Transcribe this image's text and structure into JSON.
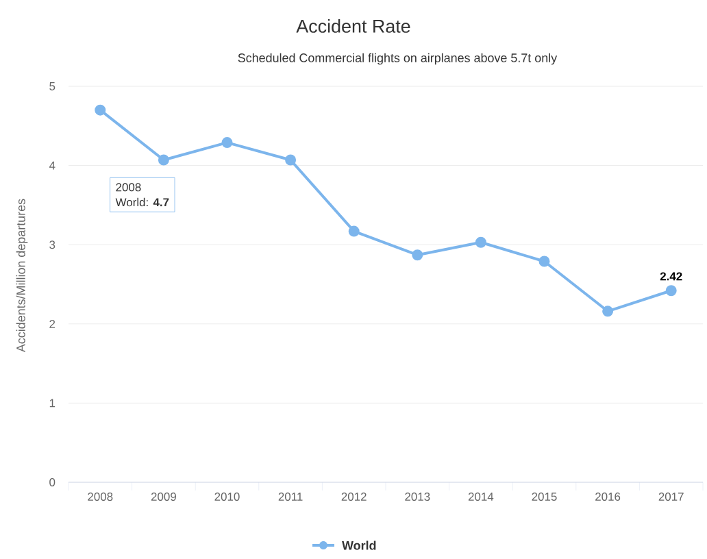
{
  "chart_data": {
    "type": "line",
    "title": "Accident Rate",
    "subtitle": "Scheduled Commercial flights on airplanes above 5.7t only",
    "ylabel": "Accidents/Million departures",
    "categories": [
      "2008",
      "2009",
      "2010",
      "2011",
      "2012",
      "2013",
      "2014",
      "2015",
      "2016",
      "2017"
    ],
    "series": [
      {
        "name": "World",
        "color": "#7cb5ec",
        "values": [
          4.7,
          4.07,
          4.29,
          4.07,
          3.17,
          2.87,
          3.03,
          2.79,
          2.16,
          2.42
        ],
        "value_labels": [
          null,
          null,
          null,
          null,
          null,
          null,
          null,
          null,
          null,
          "2.42"
        ]
      }
    ],
    "ylim": [
      0,
      5
    ],
    "yticks": [
      0,
      1,
      2,
      3,
      4,
      5
    ],
    "grid": "y",
    "legend": "bottom",
    "marker": "circle",
    "line_style": "solid",
    "annotations": [
      "2008",
      "World: **4.7**"
    ]
  }
}
